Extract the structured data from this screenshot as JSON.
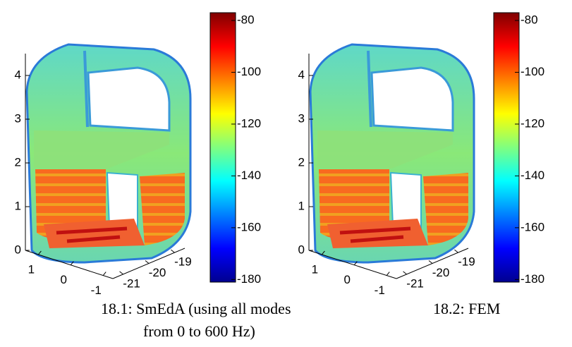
{
  "panels": [
    {
      "zlim": [
        0,
        4.5
      ],
      "zticks": [
        0,
        1,
        2,
        3,
        4
      ],
      "xlim": [
        1.4,
        -1.3
      ],
      "xticks": [
        1,
        0,
        -1
      ],
      "ylim": [
        -21.4,
        -18.6
      ],
      "yticks": [
        -21,
        -20,
        -19
      ],
      "colorbar": {
        "clim": [
          -181,
          -77
        ],
        "ticks": [
          -80,
          -100,
          -120,
          -140,
          -160,
          -180
        ]
      },
      "caption": [
        "18.1: SmEdA (using all modes",
        "from 0 to 600 Hz)"
      ]
    },
    {
      "zlim": [
        0,
        4.5
      ],
      "zticks": [
        0,
        1,
        2,
        3,
        4
      ],
      "xlim": [
        1.4,
        -1.3
      ],
      "xticks": [
        1,
        0,
        -1
      ],
      "ylim": [
        -21.4,
        -18.6
      ],
      "yticks": [
        -21,
        -20,
        -19
      ],
      "colorbar": {
        "clim": [
          -181,
          -77
        ],
        "ticks": [
          -80,
          -100,
          -120,
          -140,
          -160,
          -180
        ]
      },
      "caption": [
        "18.2: FEM"
      ]
    }
  ]
}
